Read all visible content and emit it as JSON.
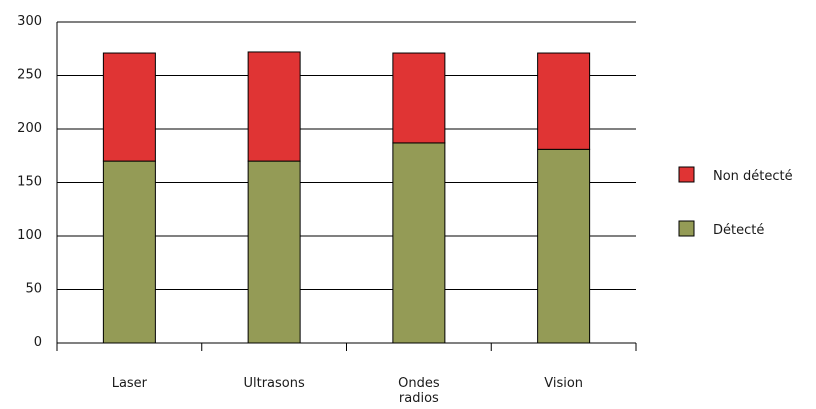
{
  "chart_data": {
    "type": "bar",
    "stacked": true,
    "categories": [
      "Laser",
      "Ultrasons",
      "Ondes radios",
      "Vision"
    ],
    "category_lines": [
      [
        "Laser"
      ],
      [
        "Ultrasons"
      ],
      [
        "Ondes",
        "radios"
      ],
      [
        "Vision"
      ]
    ],
    "series": [
      {
        "name": "Détecté",
        "values": [
          170,
          170,
          187,
          181
        ],
        "color": "#949b56"
      },
      {
        "name": "Non détecté",
        "values": [
          101,
          102,
          84,
          90
        ],
        "color": "#e03434"
      }
    ],
    "title": "",
    "xlabel": "",
    "ylabel": "",
    "ylim": [
      0,
      300
    ],
    "yticks": [
      0,
      50,
      100,
      150,
      200,
      250,
      300
    ],
    "grid": true,
    "legend_position": "right",
    "legend_order": [
      "Non détecté",
      "Détecté"
    ]
  }
}
